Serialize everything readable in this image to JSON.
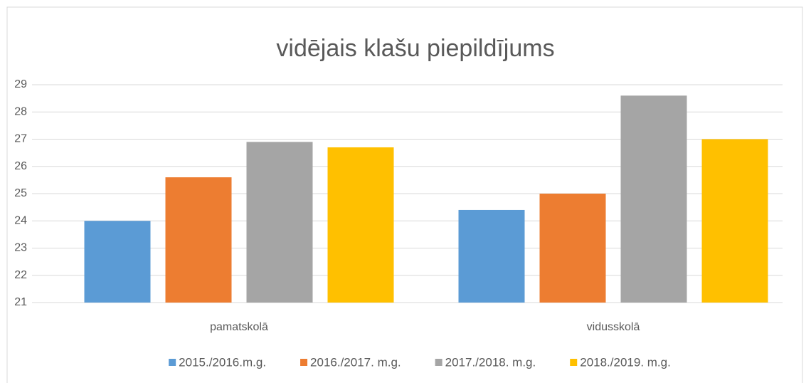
{
  "chart_data": {
    "type": "bar",
    "title": "vidējais klašu piepildījums",
    "categories": [
      "pamatskolā",
      "vidusskolā"
    ],
    "series": [
      {
        "name": "2015./2016.m.g.",
        "color": "#5b9bd5",
        "values": [
          24,
          24.4
        ]
      },
      {
        "name": "2016./2017. m.g.",
        "color": "#ed7d31",
        "values": [
          25.6,
          25
        ]
      },
      {
        "name": "2017./2018. m.g.",
        "color": "#a5a5a5",
        "values": [
          26.9,
          28.6
        ]
      },
      {
        "name": "2018./2019. m.g.",
        "color": "#ffc000",
        "values": [
          26.7,
          27
        ]
      }
    ],
    "ylim": [
      21,
      29
    ],
    "yticks": [
      21,
      22,
      23,
      24,
      25,
      26,
      27,
      28,
      29
    ],
    "grid": true,
    "legend": "bottom"
  }
}
